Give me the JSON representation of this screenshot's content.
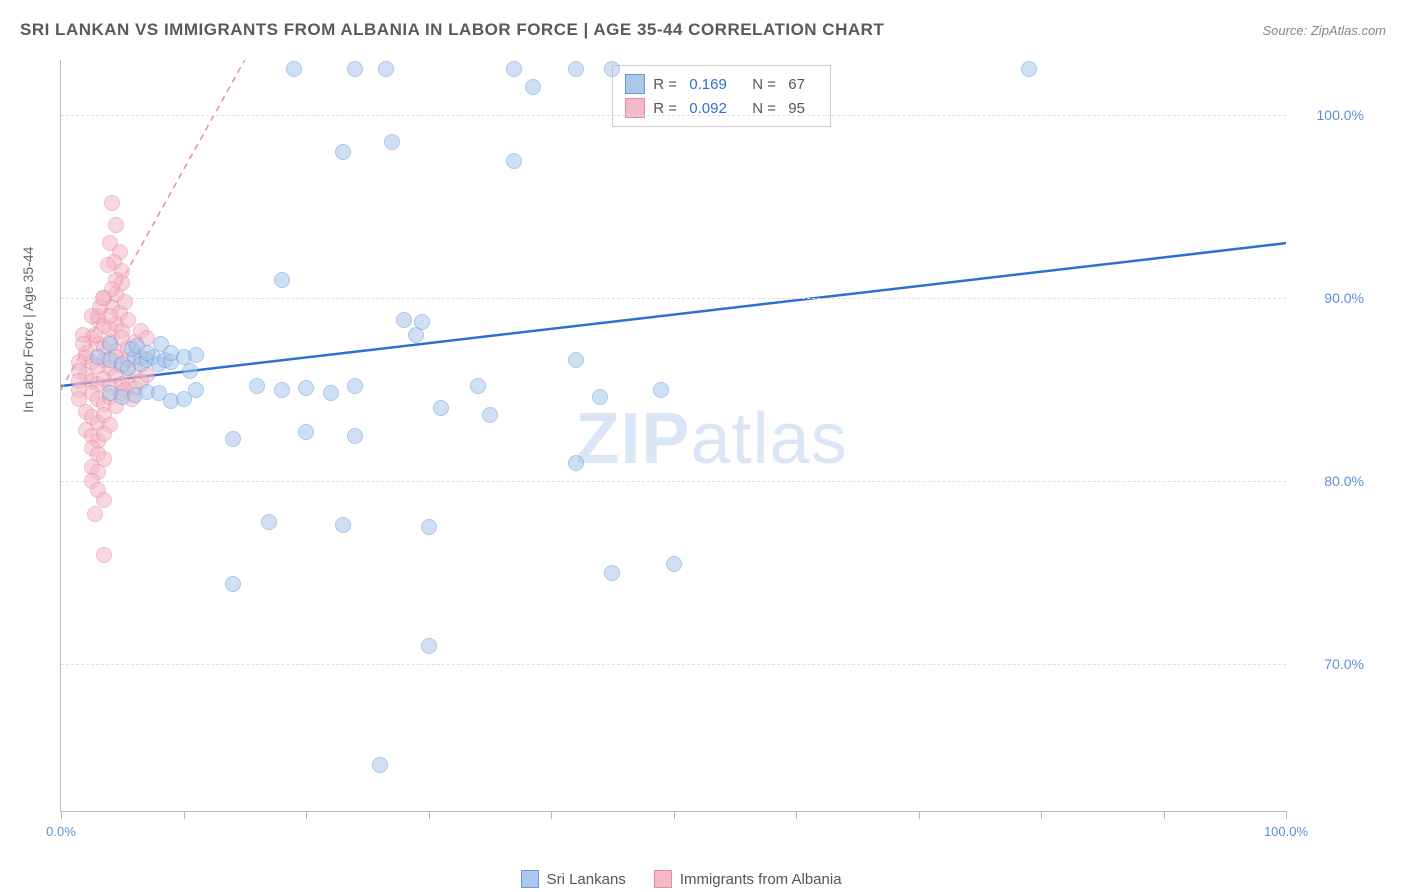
{
  "header": {
    "title": "SRI LANKAN VS IMMIGRANTS FROM ALBANIA IN LABOR FORCE | AGE 35-44 CORRELATION CHART",
    "source": "Source: ZipAtlas.com"
  },
  "chart": {
    "type": "scatter",
    "y_axis_title": "In Labor Force | Age 35-44",
    "xlim": [
      0,
      100
    ],
    "ylim": [
      62,
      103
    ],
    "x_ticks": [
      0,
      10,
      20,
      30,
      40,
      50,
      60,
      70,
      80,
      90,
      100
    ],
    "x_tick_labels": {
      "0": "0.0%",
      "100": "100.0%"
    },
    "y_ticks": [
      70,
      80,
      90,
      100
    ],
    "y_tick_labels": {
      "70": "70.0%",
      "80": "80.0%",
      "90": "90.0%",
      "100": "100.0%"
    },
    "background_color": "#ffffff",
    "grid_color": "#e0e0e0",
    "axis_color": "#bbbbbb",
    "tick_label_color": "#5b8fd8",
    "axis_title_color": "#666666",
    "marker_radius": 8,
    "marker_opacity": 0.55,
    "series": [
      {
        "name": "Sri Lankans",
        "color_fill": "#a9c8ec",
        "color_stroke": "#6a9bd8",
        "r": 0.169,
        "n": 67,
        "trend": {
          "x1": 0,
          "y1": 85.2,
          "x2": 100,
          "y2": 93.0,
          "stroke": "#2f6fd0",
          "width": 2.5,
          "dash": "none"
        },
        "points": [
          [
            19,
            102.5
          ],
          [
            24,
            102.5
          ],
          [
            26.5,
            102.5
          ],
          [
            37,
            102.5
          ],
          [
            38.5,
            101.5
          ],
          [
            42,
            102.5
          ],
          [
            45,
            102.5
          ],
          [
            79,
            102.5
          ],
          [
            23,
            98.0
          ],
          [
            27,
            98.5
          ],
          [
            37,
            97.5
          ],
          [
            18,
            91.0
          ],
          [
            28,
            88.8
          ],
          [
            29,
            88.0
          ],
          [
            29.5,
            88.7
          ],
          [
            3,
            86.8
          ],
          [
            4,
            86.6
          ],
          [
            5,
            86.4
          ],
          [
            5.5,
            86.2
          ],
          [
            6,
            86.8
          ],
          [
            6.5,
            86.4
          ],
          [
            7,
            86.6
          ],
          [
            7.5,
            86.8
          ],
          [
            8,
            86.4
          ],
          [
            8.5,
            86.6
          ],
          [
            9,
            86.5
          ],
          [
            10,
            86.8
          ],
          [
            10.5,
            86.0
          ],
          [
            11,
            86.9
          ],
          [
            4,
            84.8
          ],
          [
            5,
            84.6
          ],
          [
            6,
            84.7
          ],
          [
            7,
            84.9
          ],
          [
            8,
            84.8
          ],
          [
            9,
            84.4
          ],
          [
            10,
            84.5
          ],
          [
            11,
            85.0
          ],
          [
            16,
            85.2
          ],
          [
            18,
            85.0
          ],
          [
            20,
            85.1
          ],
          [
            22,
            84.8
          ],
          [
            24,
            85.2
          ],
          [
            34,
            85.2
          ],
          [
            42,
            86.6
          ],
          [
            44,
            84.6
          ],
          [
            49,
            85.0
          ],
          [
            35,
            83.6
          ],
          [
            20,
            82.7
          ],
          [
            24,
            82.5
          ],
          [
            14,
            82.3
          ],
          [
            42,
            81.0
          ],
          [
            31,
            84.0
          ],
          [
            50,
            75.5
          ],
          [
            45,
            75.0
          ],
          [
            14,
            74.4
          ],
          [
            17,
            77.8
          ],
          [
            23,
            77.6
          ],
          [
            30,
            77.5
          ],
          [
            30,
            71.0
          ],
          [
            26,
            64.5
          ],
          [
            4,
            87.5
          ],
          [
            5.8,
            87.2
          ],
          [
            6.2,
            87.4
          ],
          [
            7.0,
            87.0
          ],
          [
            8.2,
            87.5
          ],
          [
            9,
            87.0
          ]
        ]
      },
      {
        "name": "Immigrants from Albania",
        "color_fill": "#f4b9c7",
        "color_stroke": "#e98aa3",
        "r": 0.092,
        "n": 95,
        "trend": {
          "x1": 0,
          "y1": 85.0,
          "x2": 15,
          "y2": 103.0,
          "stroke": "#e98aa3",
          "width": 1.5,
          "dash": "6,5"
        },
        "points": [
          [
            4.2,
            95.2
          ],
          [
            4.5,
            94.0
          ],
          [
            4.0,
            93.0
          ],
          [
            4.8,
            92.5
          ],
          [
            4.3,
            92.0
          ],
          [
            5.0,
            91.5
          ],
          [
            4.5,
            91.0
          ],
          [
            3.5,
            90.0
          ],
          [
            4.2,
            89.5
          ],
          [
            4.8,
            89.2
          ],
          [
            5.2,
            89.8
          ],
          [
            3.0,
            88.8
          ],
          [
            3.5,
            88.5
          ],
          [
            4.0,
            88.3
          ],
          [
            4.5,
            88.6
          ],
          [
            5.0,
            88.2
          ],
          [
            5.5,
            88.8
          ],
          [
            2.5,
            87.8
          ],
          [
            3.0,
            87.5
          ],
          [
            3.5,
            87.3
          ],
          [
            4.0,
            87.6
          ],
          [
            4.5,
            87.1
          ],
          [
            5.0,
            87.8
          ],
          [
            5.5,
            87.3
          ],
          [
            6.0,
            87.6
          ],
          [
            2.0,
            86.8
          ],
          [
            2.5,
            86.5
          ],
          [
            3.0,
            86.3
          ],
          [
            3.5,
            86.6
          ],
          [
            4.0,
            86.2
          ],
          [
            4.5,
            86.8
          ],
          [
            5.0,
            86.3
          ],
          [
            5.5,
            86.6
          ],
          [
            6.0,
            86.1
          ],
          [
            6.5,
            86.8
          ],
          [
            2.0,
            85.8
          ],
          [
            2.5,
            85.5
          ],
          [
            3.0,
            85.3
          ],
          [
            3.5,
            85.6
          ],
          [
            4.0,
            85.2
          ],
          [
            4.5,
            85.8
          ],
          [
            5.0,
            85.3
          ],
          [
            5.5,
            85.6
          ],
          [
            6.0,
            85.1
          ],
          [
            2.5,
            84.8
          ],
          [
            3.0,
            84.5
          ],
          [
            3.5,
            84.2
          ],
          [
            4.0,
            84.6
          ],
          [
            4.5,
            84.1
          ],
          [
            5.0,
            84.8
          ],
          [
            2.0,
            83.8
          ],
          [
            2.5,
            83.5
          ],
          [
            3.0,
            83.2
          ],
          [
            3.5,
            83.6
          ],
          [
            4.0,
            83.1
          ],
          [
            2.0,
            82.8
          ],
          [
            2.5,
            82.5
          ],
          [
            3.0,
            82.2
          ],
          [
            3.5,
            82.6
          ],
          [
            2.5,
            81.8
          ],
          [
            3.0,
            81.5
          ],
          [
            3.5,
            81.2
          ],
          [
            2.5,
            80.8
          ],
          [
            3.0,
            80.5
          ],
          [
            2.5,
            80.0
          ],
          [
            3.0,
            79.5
          ],
          [
            3.5,
            79.0
          ],
          [
            2.0,
            87.0
          ],
          [
            1.5,
            86.5
          ],
          [
            1.5,
            86.0
          ],
          [
            1.5,
            85.5
          ],
          [
            1.5,
            85.0
          ],
          [
            1.5,
            84.5
          ],
          [
            6.5,
            88.2
          ],
          [
            7.0,
            87.8
          ],
          [
            2.8,
            78.2
          ],
          [
            3.5,
            76.0
          ],
          [
            4.0,
            89.0
          ],
          [
            4.5,
            90.2
          ],
          [
            5.0,
            90.8
          ],
          [
            3.8,
            91.8
          ],
          [
            4.2,
            90.5
          ],
          [
            3.0,
            89.0
          ],
          [
            3.2,
            89.5
          ],
          [
            3.4,
            90.0
          ],
          [
            2.5,
            89.0
          ],
          [
            2.8,
            88.0
          ],
          [
            5.2,
            85.0
          ],
          [
            5.8,
            84.5
          ],
          [
            1.8,
            88.0
          ],
          [
            1.8,
            87.5
          ],
          [
            6.5,
            85.5
          ],
          [
            7.0,
            85.8
          ]
        ]
      }
    ]
  },
  "legend_bottom": [
    {
      "label": "Sri Lankans",
      "fill": "#a9c8ec",
      "stroke": "#6a9bd8"
    },
    {
      "label": "Immigrants from Albania",
      "fill": "#f4b9c7",
      "stroke": "#e98aa3"
    }
  ],
  "legend_top_value_color": "#2f6fd0",
  "watermark": {
    "bold": "ZIP",
    "rest": "atlas"
  }
}
